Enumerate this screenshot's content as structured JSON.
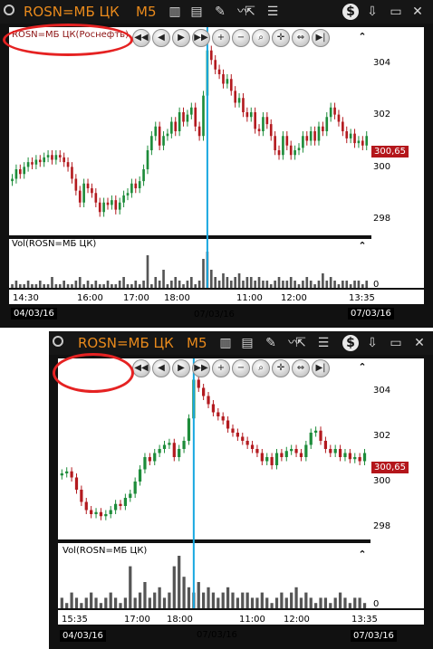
{
  "top": {
    "symbol": "ROSN=МБ ЦК",
    "timeframe": "M5",
    "instrument_label": "ROSN=МБ ЦК(Роснефть)",
    "vol_label": "Vol(ROSN=МБ ЦК)",
    "price_tag": "300,65",
    "y_ticks": [
      "304",
      "302",
      "300",
      "298"
    ],
    "vol_zero": "0",
    "x_ticks": [
      "14:30",
      "16:00",
      "17:00",
      "18:00",
      "11:00",
      "12:00",
      "13:35"
    ],
    "date_left": "04/03/16",
    "date_mid": "07/03/16",
    "date_right": "07/03/16"
  },
  "bottom": {
    "symbol": "ROSN=МБ ЦК",
    "timeframe": "M5",
    "vol_label": "Vol(ROSN=МБ ЦК)",
    "price_tag": "300,65",
    "y_ticks": [
      "304",
      "302",
      "300",
      "298"
    ],
    "vol_zero": "0",
    "x_ticks": [
      "15:35",
      "17:00",
      "18:00",
      "11:00",
      "12:00",
      "13:35"
    ],
    "date_left": "04/03/16",
    "date_mid": "07/03/16",
    "date_right": "07/03/16"
  },
  "icons": {
    "dollar": "dollar-icon",
    "download": "download-icon",
    "minimize": "minimize-icon",
    "close": "close-icon"
  },
  "colors": {
    "up": "#1d8c3a",
    "down": "#b31a1f",
    "cursor": "#19a8e0",
    "accent": "#e98a1c",
    "annotation": "#e52222"
  },
  "chart_data": [
    {
      "type": "candlestick",
      "instrument": "ROSN=МБ ЦК(Роснефть)",
      "timeframe": "M5",
      "ylim": [
        297,
        305
      ],
      "x_tick_labels": [
        "14:30",
        "16:00",
        "17:00",
        "18:00",
        "11:00",
        "12:00",
        "13:35"
      ],
      "close": [
        299.0,
        299.4,
        299.2,
        299.5,
        299.7,
        299.6,
        299.8,
        299.7,
        299.9,
        300.0,
        299.8,
        300.0,
        299.9,
        299.7,
        299.5,
        299.0,
        298.5,
        298.0,
        298.8,
        298.6,
        298.4,
        298.0,
        297.6,
        298.0,
        297.9,
        298.1,
        297.7,
        298.0,
        298.3,
        298.4,
        298.8,
        298.6,
        298.9,
        299.4,
        300.2,
        300.8,
        301.2,
        300.4,
        300.8,
        300.9,
        301.4,
        301.0,
        301.8,
        301.4,
        301.7,
        302.0,
        301.2,
        300.8,
        302.5,
        304.4,
        304.0,
        303.6,
        303.4,
        303.0,
        303.2,
        302.7,
        302.2,
        302.4,
        301.8,
        301.6,
        301.8,
        301.1,
        301.0,
        301.6,
        301.3,
        300.8,
        300.2,
        300.0,
        300.8,
        300.4,
        300.0,
        300.2,
        300.3,
        300.8,
        300.6,
        301.0,
        300.6,
        301.2,
        301.0,
        301.6,
        302.0,
        301.7,
        301.4,
        301.0,
        300.7,
        300.9,
        300.5,
        300.6,
        300.4,
        300.8
      ],
      "volume": [
        1,
        2,
        1,
        1,
        2,
        1,
        1,
        2,
        1,
        1,
        3,
        1,
        1,
        2,
        1,
        1,
        2,
        3,
        1,
        2,
        1,
        2,
        1,
        1,
        2,
        1,
        1,
        2,
        3,
        1,
        1,
        2,
        1,
        2,
        9,
        1,
        3,
        2,
        5,
        1,
        2,
        3,
        2,
        1,
        2,
        3,
        1,
        2,
        8,
        10,
        5,
        3,
        2,
        4,
        3,
        2,
        3,
        4,
        2,
        3,
        3,
        2,
        3,
        2,
        2,
        1,
        2,
        3,
        2,
        2,
        3,
        2,
        1,
        2,
        3,
        2,
        1,
        2,
        4,
        2,
        3,
        2,
        1,
        2,
        2,
        1,
        2,
        2,
        1,
        2
      ],
      "volume_axis_label": "Vol(ROSN=МБ ЦК)",
      "last_price": "300,65",
      "dates": [
        "04/03/16",
        "07/03/16"
      ]
    },
    {
      "type": "candlestick",
      "instrument": "ROSN=МБ ЦК",
      "timeframe": "M5",
      "ylim": [
        297,
        305
      ],
      "x_tick_labels": [
        "15:35",
        "17:00",
        "18:00",
        "11:00",
        "12:00",
        "13:35"
      ],
      "close": [
        299.8,
        299.9,
        299.6,
        299.0,
        298.4,
        298.0,
        297.8,
        297.9,
        297.7,
        297.8,
        298.0,
        298.3,
        298.2,
        298.6,
        298.8,
        299.4,
        300.0,
        300.6,
        300.4,
        300.8,
        301.0,
        301.2,
        301.3,
        300.6,
        301.0,
        301.4,
        302.5,
        304.4,
        304.0,
        303.6,
        303.2,
        302.8,
        302.6,
        302.4,
        302.0,
        301.8,
        301.6,
        301.4,
        301.2,
        301.0,
        300.8,
        300.4,
        300.6,
        300.2,
        300.8,
        300.6,
        300.9,
        301.0,
        300.8,
        300.6,
        301.2,
        301.8,
        301.9,
        301.4,
        301.0,
        300.8,
        301.0,
        300.6,
        300.8,
        300.5,
        300.6,
        300.4,
        300.8
      ],
      "volume": [
        2,
        1,
        3,
        2,
        1,
        2,
        3,
        2,
        1,
        2,
        3,
        2,
        1,
        2,
        8,
        2,
        3,
        5,
        2,
        3,
        4,
        2,
        3,
        8,
        10,
        6,
        4,
        3,
        5,
        3,
        4,
        3,
        2,
        3,
        4,
        3,
        2,
        3,
        3,
        2,
        2,
        3,
        2,
        1,
        2,
        3,
        2,
        3,
        4,
        2,
        3,
        2,
        1,
        2,
        2,
        1,
        2,
        3,
        2,
        1,
        2,
        2,
        1
      ],
      "volume_axis_label": "Vol(ROSN=МБ ЦК)",
      "last_price": "300,65",
      "dates": [
        "04/03/16",
        "07/03/16"
      ]
    }
  ]
}
